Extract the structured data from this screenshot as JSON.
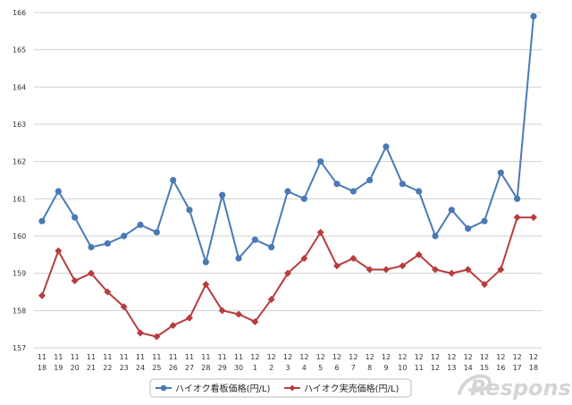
{
  "chart_data": {
    "type": "line",
    "categories": [
      [
        "11",
        "18"
      ],
      [
        "11",
        "19"
      ],
      [
        "11",
        "20"
      ],
      [
        "11",
        "21"
      ],
      [
        "11",
        "22"
      ],
      [
        "11",
        "23"
      ],
      [
        "11",
        "24"
      ],
      [
        "11",
        "25"
      ],
      [
        "11",
        "26"
      ],
      [
        "11",
        "27"
      ],
      [
        "11",
        "28"
      ],
      [
        "11",
        "29"
      ],
      [
        "11",
        "30"
      ],
      [
        "12",
        "1"
      ],
      [
        "12",
        "2"
      ],
      [
        "12",
        "3"
      ],
      [
        "12",
        "4"
      ],
      [
        "12",
        "5"
      ],
      [
        "12",
        "6"
      ],
      [
        "12",
        "7"
      ],
      [
        "12",
        "8"
      ],
      [
        "12",
        "9"
      ],
      [
        "12",
        "10"
      ],
      [
        "12",
        "11"
      ],
      [
        "12",
        "12"
      ],
      [
        "12",
        "13"
      ],
      [
        "12",
        "14"
      ],
      [
        "12",
        "15"
      ],
      [
        "12",
        "16"
      ],
      [
        "12",
        "17"
      ],
      [
        "12",
        "18"
      ]
    ],
    "series": [
      {
        "name": "ハイオク看板価格(円/L)",
        "color": "#4a7ab5",
        "marker": "circle",
        "values": [
          160.4,
          161.2,
          160.5,
          159.7,
          159.8,
          160.0,
          160.3,
          160.1,
          161.5,
          160.7,
          159.3,
          161.1,
          159.4,
          159.9,
          159.7,
          161.2,
          161.0,
          162.0,
          161.4,
          161.2,
          161.5,
          162.4,
          161.4,
          161.2,
          160.0,
          160.7,
          160.2,
          160.4,
          161.7,
          161.0,
          165.9
        ]
      },
      {
        "name": "ハイオク実売価格(円/L)",
        "color": "#b83c3c",
        "marker": "diamond",
        "values": [
          158.4,
          159.6,
          158.8,
          159.0,
          158.5,
          158.1,
          157.4,
          157.3,
          157.6,
          157.8,
          158.7,
          158.0,
          157.9,
          157.7,
          158.3,
          159.0,
          159.4,
          160.1,
          159.2,
          159.4,
          159.1,
          159.1,
          159.2,
          159.5,
          159.1,
          159.0,
          159.1,
          158.7,
          159.1,
          160.5,
          160.5
        ]
      }
    ],
    "yticks": [
      "157",
      "158",
      "159",
      "160",
      "161",
      "162",
      "163",
      "164",
      "165",
      "166"
    ],
    "ylim": [
      157,
      166
    ],
    "grid": true,
    "legend_position": "bottom",
    "watermark": "Response."
  }
}
